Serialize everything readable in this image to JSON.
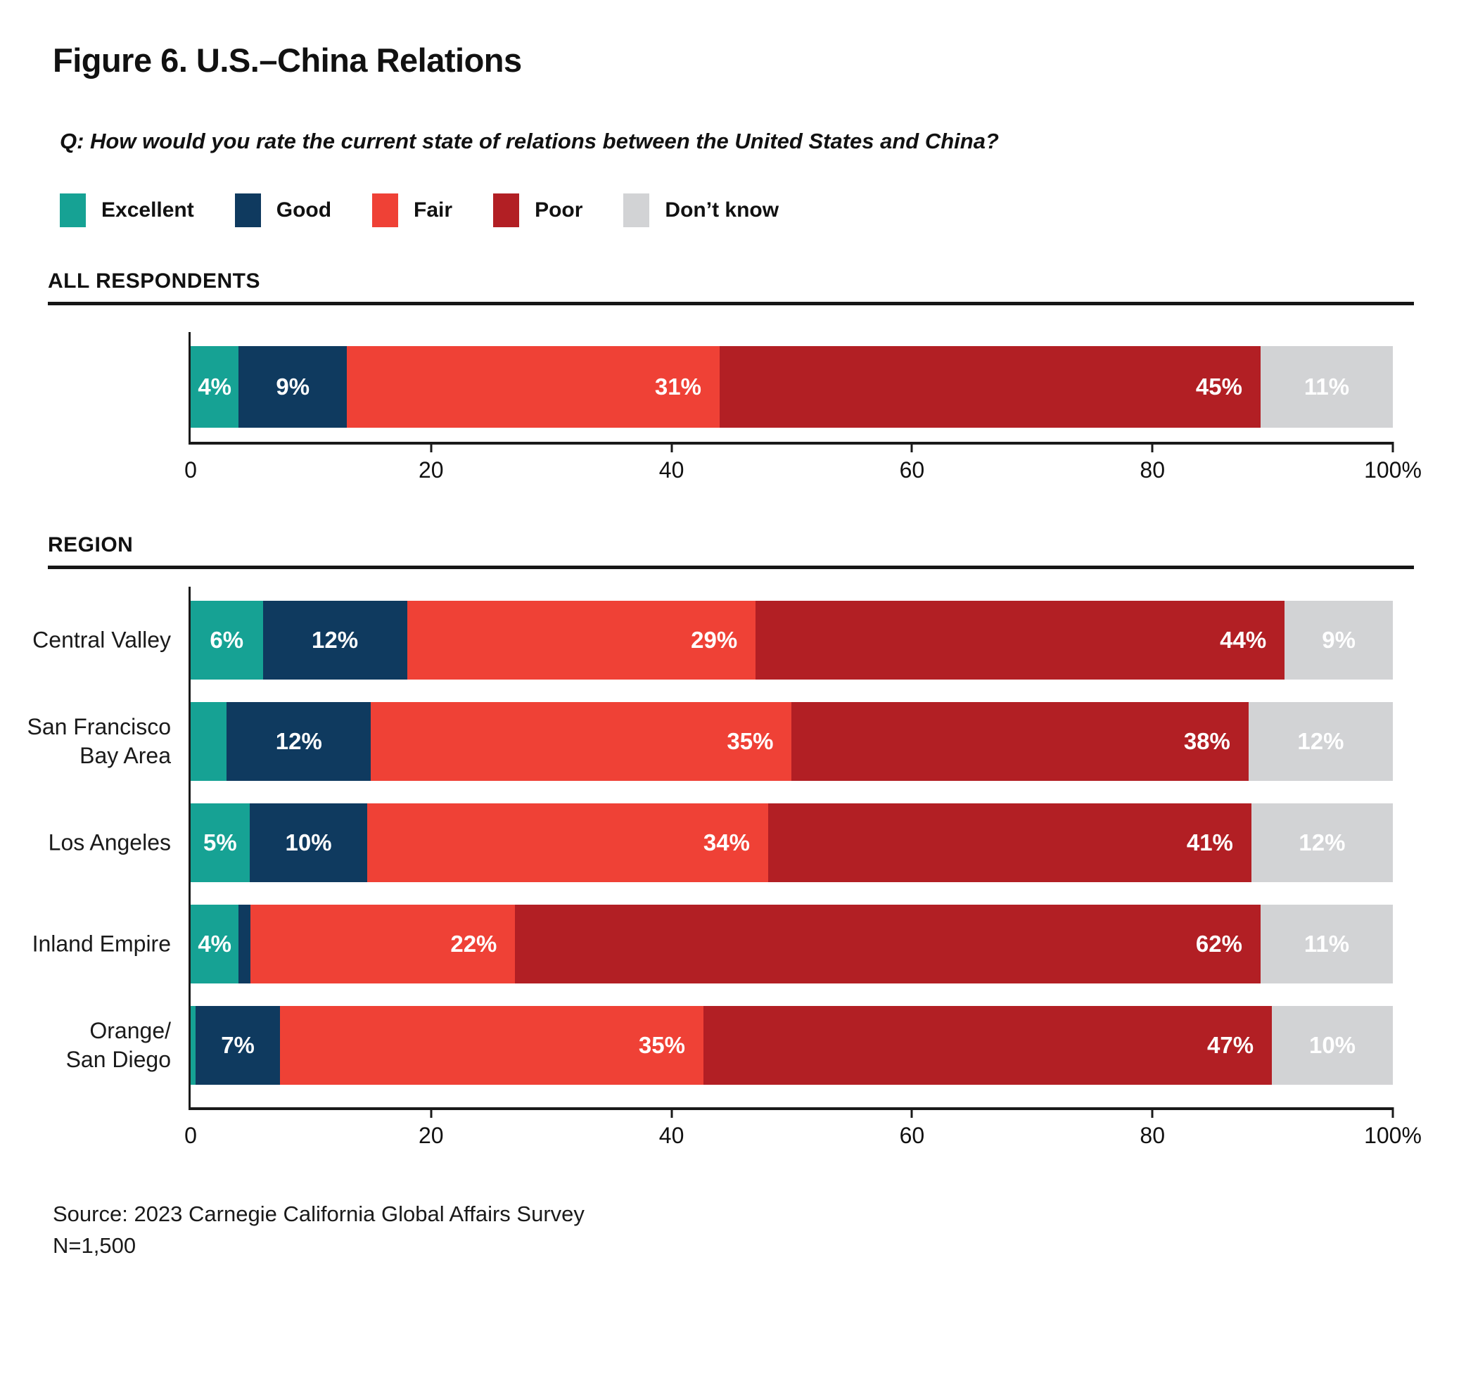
{
  "title": "Figure 6. U.S.–China Relations",
  "question": "Q: How would you rate the current state of relations between the United States and China?",
  "legend": {
    "items": [
      {
        "key": "excellent",
        "label": "Excellent"
      },
      {
        "key": "good",
        "label": "Good"
      },
      {
        "key": "fair",
        "label": "Fair"
      },
      {
        "key": "poor",
        "label": "Poor"
      },
      {
        "key": "dont_know",
        "label": "Don’t know"
      }
    ]
  },
  "colors": {
    "excellent": "#16A294",
    "good": "#0F3A5F",
    "fair": "#EF4136",
    "poor": "#B21F24",
    "dont_know": "#D2D3D5"
  },
  "chart_data": [
    {
      "type": "bar",
      "orientation": "horizontal",
      "stacked": true,
      "section": "ALL RESPONDENTS",
      "xlim": [
        0,
        100
      ],
      "x_ticks": [
        "0",
        "20",
        "40",
        "60",
        "80",
        "100%"
      ],
      "series_keys": [
        "excellent",
        "good",
        "fair",
        "poor",
        "dont_know"
      ],
      "rows": [
        {
          "category": "All respondents",
          "label_lines": [],
          "values": {
            "excellent": 4,
            "good": 9,
            "fair": 31,
            "poor": 45,
            "dont_know": 11
          },
          "labels": {
            "excellent": "4%",
            "good": "9%",
            "fair": "31%",
            "poor": "45%",
            "dont_know": "11%"
          }
        }
      ]
    },
    {
      "type": "bar",
      "orientation": "horizontal",
      "stacked": true,
      "section": "REGION",
      "xlim": [
        0,
        100
      ],
      "x_ticks": [
        "0",
        "20",
        "40",
        "60",
        "80",
        "100%"
      ],
      "series_keys": [
        "excellent",
        "good",
        "fair",
        "poor",
        "dont_know"
      ],
      "rows": [
        {
          "category": "Central Valley",
          "label_lines": [
            "Central Valley"
          ],
          "values": {
            "excellent": 6,
            "good": 12,
            "fair": 29,
            "poor": 44,
            "dont_know": 9
          },
          "labels": {
            "excellent": "6%",
            "good": "12%",
            "fair": "29%",
            "poor": "44%",
            "dont_know": "9%"
          }
        },
        {
          "category": "San Francisco Bay Area",
          "label_lines": [
            "San Francisco",
            "Bay Area"
          ],
          "values": {
            "excellent": 3,
            "good": 12,
            "fair": 35,
            "poor": 38,
            "dont_know": 12
          },
          "labels": {
            "excellent": "",
            "good": "12%",
            "fair": "35%",
            "poor": "38%",
            "dont_know": "12%"
          }
        },
        {
          "category": "Los Angeles",
          "label_lines": [
            "Los Angeles"
          ],
          "values": {
            "excellent": 5,
            "good": 10,
            "fair": 34,
            "poor": 41,
            "dont_know": 12
          },
          "labels": {
            "excellent": "5%",
            "good": "10%",
            "fair": "34%",
            "poor": "41%",
            "dont_know": "12%"
          }
        },
        {
          "category": "Inland Empire",
          "label_lines": [
            "Inland Empire"
          ],
          "values": {
            "excellent": 4,
            "good": 1,
            "fair": 22,
            "poor": 62,
            "dont_know": 11
          },
          "labels": {
            "excellent": "4%",
            "good": "",
            "fair": "22%",
            "poor": "62%",
            "dont_know": "11%"
          }
        },
        {
          "category": "Orange/San Diego",
          "label_lines": [
            "Orange/",
            "San Diego"
          ],
          "values": {
            "excellent": 0.4,
            "good": 7,
            "fair": 35,
            "poor": 47,
            "dont_know": 10
          },
          "labels": {
            "excellent": "",
            "good": "7%",
            "fair": "35%",
            "poor": "47%",
            "dont_know": "10%"
          }
        }
      ]
    }
  ],
  "source": {
    "line1": "Source: 2023 Carnegie California Global Affairs Survey",
    "line2": "N=1,500"
  }
}
